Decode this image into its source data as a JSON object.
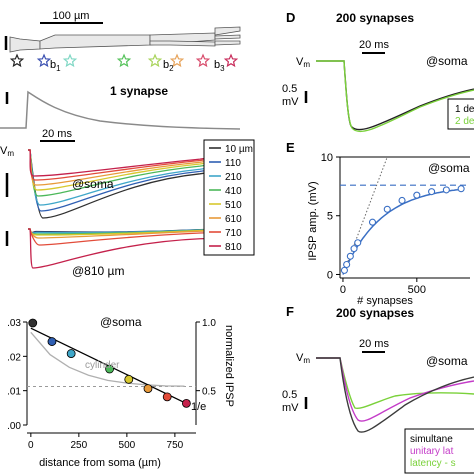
{
  "colors": {
    "d10": "#303030",
    "d110": "#2f5fb3",
    "d210": "#3fa7c9",
    "d410": "#4cb85a",
    "d510": "#d7c82e",
    "d610": "#e89a3a",
    "d710": "#e24c3a",
    "d810": "#c4214b",
    "blue": "#3a6fc4",
    "green": "#7ad13a",
    "magenta": "#c43cc8",
    "grey": "#9a9a9a",
    "synapse_star_colors": [
      "#222222",
      "#3a4fb0",
      "#7fd7c4",
      "#55c25a",
      "#a8d35a",
      "#e7a35a",
      "#d84a6a",
      "#c82b5a"
    ]
  },
  "texts": {
    "scale_100um": "100 µm",
    "b1": "b",
    "b1_sub": "1",
    "b2": "b",
    "b2_sub": "2",
    "b3": "b",
    "b3_sub": "3",
    "panel_1syn": "1 synapse",
    "scale_20ms_left": "20 ms",
    "vm": "V",
    "vm_sub": "m",
    "at_soma_C": "@soma",
    "at_810": "@810 µm",
    "at_soma_bottom": "@soma",
    "cylinder": "cylinder",
    "inv_e": "1/e",
    "xlabel_left": "distance from soma (µm)",
    "ylabel_right_left": "normalized IPSP",
    "label_D": "D",
    "label_E": "E",
    "label_F": "F",
    "title_D": "200 synapses",
    "title_F": "200 synapses",
    "scale_20ms_D": "20 ms",
    "scale_20ms_F": "20 ms",
    "at_soma_D": "@soma",
    "at_soma_E": "@soma",
    "at_soma_F": "@soma",
    "mv_D_val": "0.5",
    "mv_D_unit": "mV",
    "mv_F_val": "0.5",
    "mv_F_unit": "mV",
    "legend_D_1": "1 de",
    "legend_D_2": "2 de",
    "legend_F_1": "simultane",
    "legend_F_2": "unitary lat",
    "legend_F_3": "latency - s",
    "ylabel_E": "IPSP amp. (mV)",
    "xlabel_E": "# synapses"
  },
  "legend_C": [
    "10 µm",
    "110",
    "210",
    "410",
    "510",
    "610",
    "710",
    "810"
  ],
  "chart_data": [
    {
      "type": "scatter",
      "panel": "left-bottom",
      "title": "@soma",
      "xlabel": "distance from soma (µm)",
      "ylabel_right": "normalized IPSP",
      "xlim": [
        -20,
        860
      ],
      "ylim": [
        0.0,
        0.03
      ],
      "ylim_right": [
        0.25,
        1.0
      ],
      "xticks": [
        "0",
        "250",
        "500",
        "750"
      ],
      "xtick_values": [
        0,
        250,
        500,
        750
      ],
      "yticks": [
        ".00",
        ".01",
        ".02",
        ".03"
      ],
      "ytick_values": [
        0.0,
        0.01,
        0.02,
        0.03
      ],
      "yticks_right": [
        "0.5",
        "1.0"
      ],
      "ytick_values_right": [
        0.5,
        1.0
      ],
      "x": [
        10,
        110,
        210,
        410,
        510,
        610,
        710,
        810
      ],
      "y": [
        0.0297,
        0.0243,
        0.0208,
        0.0163,
        0.0133,
        0.0106,
        0.0082,
        0.0063
      ],
      "fit": {
        "x": [
          0,
          820
        ],
        "y": [
          0.0282,
          0.006
        ]
      },
      "cylinder": {
        "x": [
          0,
          100,
          200,
          300,
          400,
          500,
          600,
          700,
          800
        ],
        "y": [
          0.027,
          0.0205,
          0.0168,
          0.0145,
          0.013,
          0.0122,
          0.0117,
          0.0114,
          0.0113
        ]
      },
      "inv_e_level": 0.0112,
      "grid": false
    },
    {
      "type": "scatter",
      "panel": "E",
      "title": "@soma",
      "xlabel": "# synapses",
      "ylabel": "IPSP amp. (mV)",
      "xlim": [
        -20,
        860
      ],
      "ylim": [
        -0.3,
        10
      ],
      "xticks": [
        "0",
        "500"
      ],
      "xtick_values": [
        0,
        500
      ],
      "yticks": [
        "0",
        "5",
        "10"
      ],
      "ytick_values": [
        0,
        5,
        10
      ],
      "x": [
        10,
        25,
        50,
        75,
        100,
        200,
        300,
        400,
        500,
        600,
        700,
        800
      ],
      "y": [
        0.35,
        0.85,
        1.55,
        2.2,
        2.7,
        4.45,
        5.55,
        6.3,
        6.75,
        7.05,
        7.2,
        7.3
      ],
      "asymptote": 7.6,
      "linear_guide": {
        "x": [
          0,
          300
        ],
        "y": [
          0,
          10
        ]
      },
      "grid": false
    }
  ]
}
